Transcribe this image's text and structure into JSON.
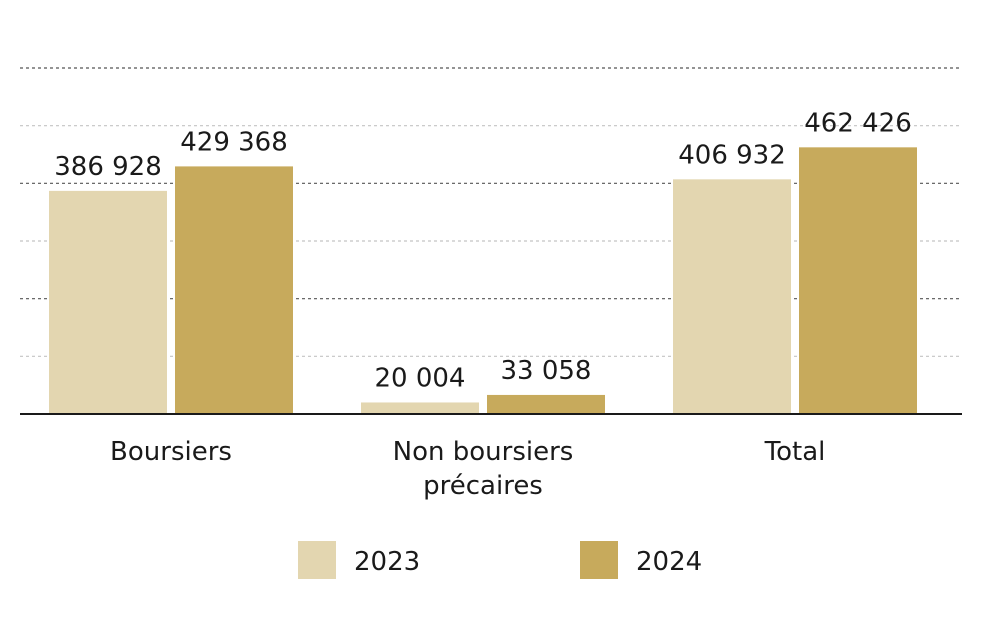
{
  "chart_data": {
    "type": "bar",
    "categories": [
      [
        "Boursiers"
      ],
      [
        "Non boursiers",
        "précaires"
      ],
      [
        "Total"
      ]
    ],
    "series": [
      {
        "name": "2023",
        "values": [
          386928,
          20004,
          406932
        ],
        "labels": [
          "386 928",
          "20 004",
          "406 932"
        ],
        "color": "#e3d6b0"
      },
      {
        "name": "2024",
        "values": [
          429368,
          33058,
          462426
        ],
        "labels": [
          "429 368",
          "33 058",
          "462 426"
        ],
        "color": "#c7aa5c"
      }
    ],
    "ylim": [
      0,
      600000
    ],
    "grid": true,
    "legend_position": "bottom",
    "title": "",
    "xlabel": "",
    "ylabel": ""
  }
}
